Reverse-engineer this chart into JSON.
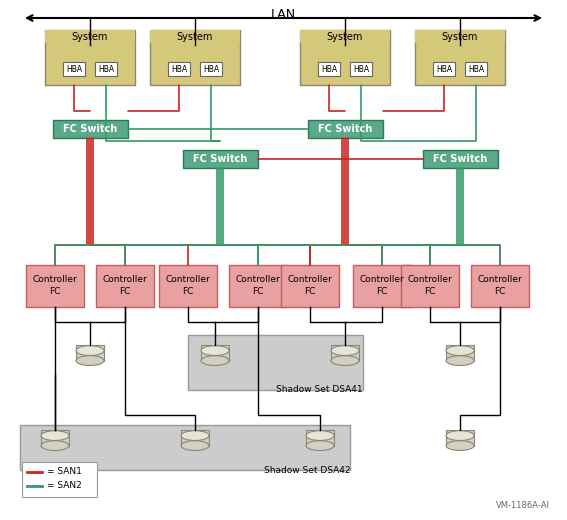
{
  "title": "LAN",
  "background": "#ffffff",
  "system_color": "#d4c87a",
  "system_border": "#8a8a6a",
  "hba_color": "#ffffff",
  "hba_border": "#666666",
  "switch_color": "#5aaa8a",
  "switch_border": "#2a7a5a",
  "controller_color": "#e8a0a0",
  "controller_border": "#c06060",
  "disk_color": "#d4cfc0",
  "disk_border": "#888877",
  "disk_top_color": "#e8e4d8",
  "shadow_gray": "#cccccc",
  "shadow_dark_gray": "#bbbbbb",
  "san1_color": "#cc2222",
  "san2_color": "#339966",
  "black": "#000000",
  "vm_label": "VM-1186A-AI",
  "shadow_set1_label": "Shadow Set DSA41",
  "shadow_set2_label": "Shadow Set DSA42",
  "legend_san1": "= SAN1",
  "legend_san2": "= SAN2"
}
